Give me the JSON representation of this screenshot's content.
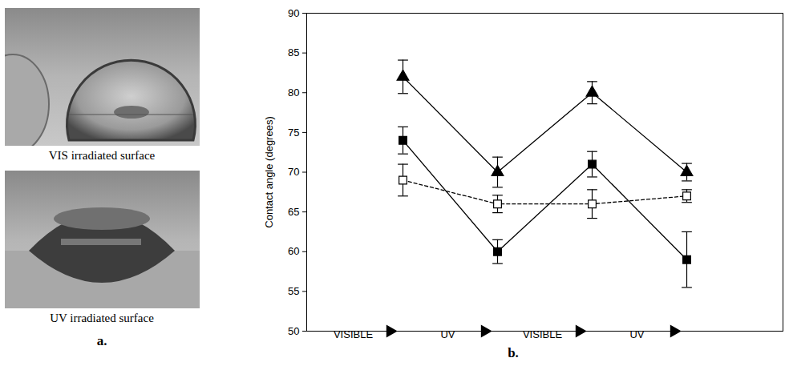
{
  "panel_a": {
    "label": "a.",
    "captions": [
      "VIS irradiated surface",
      "UV irradiated surface"
    ]
  },
  "panel_b": {
    "label": "b."
  },
  "chart_data": {
    "type": "line",
    "y_label": "Contact angle (degrees)",
    "categories": [
      "VISIBLE",
      "UV",
      "VISIBLE",
      "UV"
    ],
    "ylim": [
      50,
      90
    ],
    "yticks": [
      50,
      55,
      60,
      65,
      70,
      75,
      80,
      85,
      90
    ],
    "series": [
      {
        "color": "#000000",
        "marker": "triangle",
        "line_style": "solid",
        "values": [
          82,
          70,
          80,
          70
        ],
        "errors": [
          2.1,
          1.9,
          1.4,
          1.1
        ]
      },
      {
        "color": "#000000",
        "marker": "square",
        "line_style": "solid",
        "values": [
          74,
          60,
          71,
          59
        ],
        "errors": [
          1.7,
          1.5,
          1.6,
          3.5
        ]
      },
      {
        "color": "#000000",
        "marker": "open_square",
        "line_style": "dashed",
        "values": [
          69,
          66,
          66,
          67
        ],
        "errors": [
          2.0,
          1.1,
          1.8,
          0.8
        ]
      }
    ]
  }
}
